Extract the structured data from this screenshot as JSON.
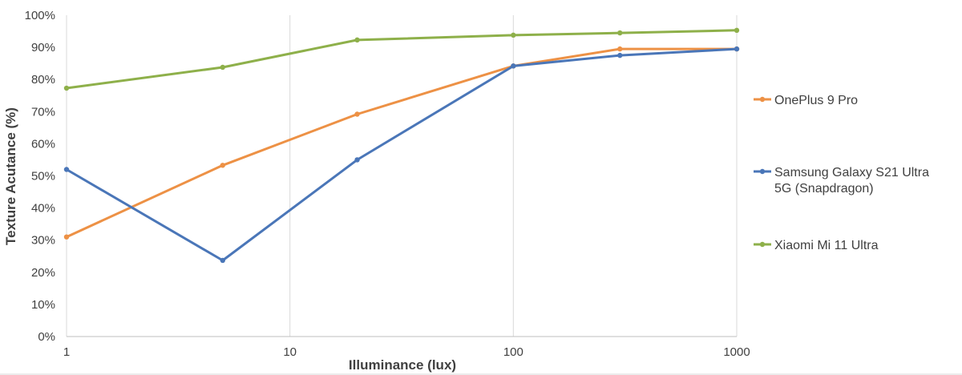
{
  "chart_data": {
    "type": "line",
    "xscale": "log",
    "xlabel": "Illuminance (lux)",
    "ylabel": "Texture Acutance (%)",
    "xlim": [
      1,
      1000
    ],
    "ylim": [
      0,
      100
    ],
    "xticks": [
      1,
      10,
      100,
      1000
    ],
    "xtick_labels": [
      "1",
      "10",
      "100",
      "1000"
    ],
    "yticks": [
      0,
      10,
      20,
      30,
      40,
      50,
      60,
      70,
      80,
      90,
      100
    ],
    "ytick_labels": [
      "0%",
      "10%",
      "20%",
      "30%",
      "40%",
      "50%",
      "60%",
      "70%",
      "80%",
      "90%",
      "100%"
    ],
    "grid": "vertical",
    "legend": "right",
    "x": [
      1,
      5,
      20,
      100,
      300,
      1000
    ],
    "series": [
      {
        "name": "OnePlus 9 Pro",
        "legend_lines": [
          "OnePlus 9 Pro"
        ],
        "color": "#ED9145",
        "values": [
          31,
          53.3,
          69.2,
          84.2,
          89.5,
          89.5
        ]
      },
      {
        "name": "Samsung Galaxy S21 Ultra 5G (Snapdragon)",
        "legend_lines": [
          "Samsung Galaxy S21 Ultra",
          "5G (Snapdragon)"
        ],
        "color": "#4A76B8",
        "values": [
          52,
          23.7,
          55,
          84.2,
          87.5,
          89.5
        ]
      },
      {
        "name": "Xiaomi Mi 11 Ultra",
        "legend_lines": [
          "Xiaomi Mi 11 Ultra"
        ],
        "color": "#8EB04A",
        "values": [
          77.3,
          83.8,
          92.3,
          93.8,
          94.5,
          95.3
        ]
      }
    ]
  }
}
